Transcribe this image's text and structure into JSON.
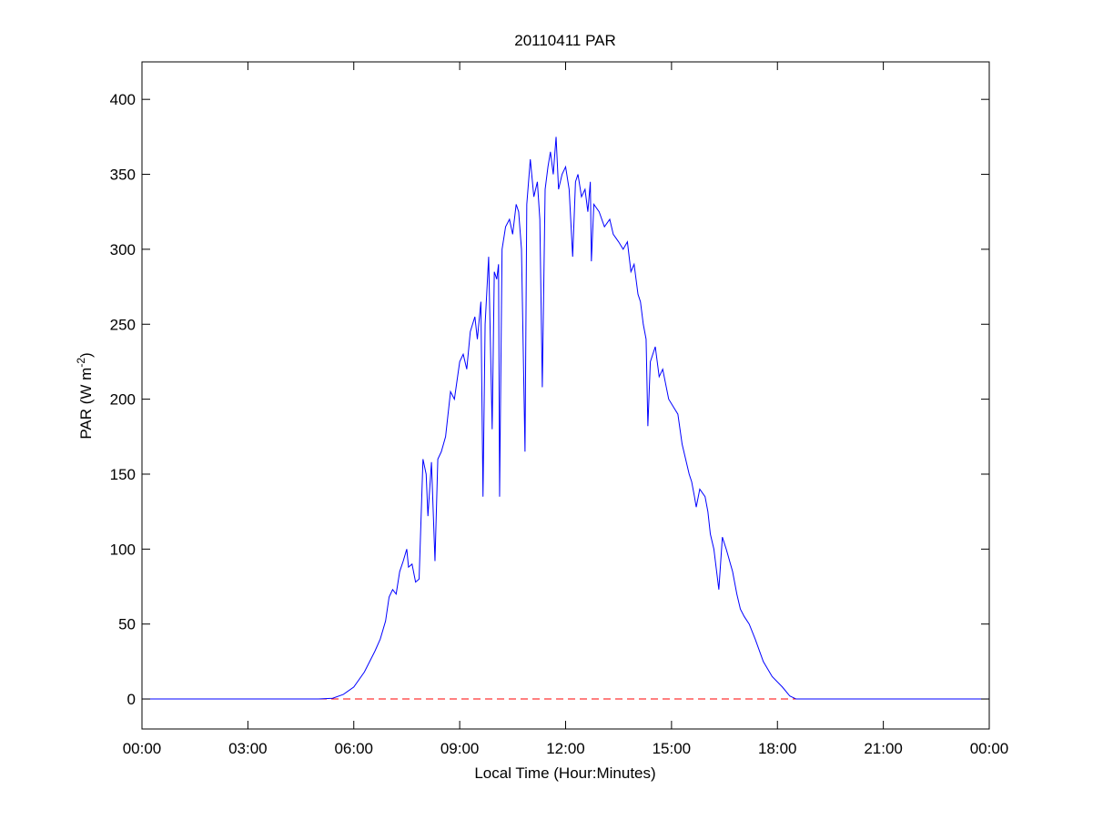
{
  "chart_data": {
    "type": "line",
    "title": "20110411 PAR",
    "xlabel": "Local Time (Hour:Minutes)",
    "ylabel": {
      "text": "PAR (W m",
      "sup": "-2",
      "end": ")"
    },
    "xlim": [
      0,
      24
    ],
    "xticks": [
      {
        "value": 0,
        "label": "00:00"
      },
      {
        "value": 3,
        "label": "03:00"
      },
      {
        "value": 6,
        "label": "06:00"
      },
      {
        "value": 9,
        "label": "09:00"
      },
      {
        "value": 12,
        "label": "12:00"
      },
      {
        "value": 15,
        "label": "15:00"
      },
      {
        "value": 18,
        "label": "18:00"
      },
      {
        "value": 21,
        "label": "21:00"
      },
      {
        "value": 24,
        "label": "00:00"
      }
    ],
    "ylim": [
      -20,
      425
    ],
    "yticks": [
      0,
      50,
      100,
      150,
      200,
      250,
      300,
      350,
      400
    ],
    "grid": false,
    "hline": {
      "value": 0,
      "color": "#ff0000",
      "style": "dashed"
    },
    "series": [
      {
        "color": "#0000ff",
        "x": [
          0,
          5.0,
          5.4,
          5.7,
          6.0,
          6.3,
          6.6,
          6.75,
          6.9,
          7.0,
          7.1,
          7.2,
          7.3,
          7.4,
          7.5,
          7.55,
          7.65,
          7.75,
          7.85,
          7.96,
          8.05,
          8.1,
          8.2,
          8.3,
          8.38,
          8.48,
          8.6,
          8.74,
          8.85,
          9.0,
          9.1,
          9.2,
          9.3,
          9.43,
          9.5,
          9.6,
          9.66,
          9.72,
          9.82,
          9.92,
          9.98,
          10.05,
          10.1,
          10.13,
          10.2,
          10.3,
          10.41,
          10.5,
          10.6,
          10.67,
          10.75,
          10.85,
          10.9,
          11.0,
          11.1,
          11.2,
          11.27,
          11.34,
          11.42,
          11.5,
          11.57,
          11.65,
          11.73,
          11.8,
          11.9,
          12.0,
          12.1,
          12.2,
          12.28,
          12.35,
          12.45,
          12.55,
          12.63,
          12.7,
          12.73,
          12.8,
          12.95,
          13.1,
          13.25,
          13.35,
          13.5,
          13.63,
          13.75,
          13.85,
          13.94,
          14.05,
          14.12,
          14.2,
          14.28,
          14.33,
          14.4,
          14.54,
          14.65,
          14.75,
          14.92,
          15.05,
          15.18,
          15.3,
          15.4,
          15.5,
          15.57,
          15.65,
          15.7,
          15.8,
          15.95,
          16.03,
          16.1,
          16.2,
          16.34,
          16.44,
          16.55,
          16.73,
          16.85,
          16.95,
          17.06,
          17.2,
          17.37,
          17.6,
          17.85,
          18.14,
          18.35,
          18.53,
          24
        ],
        "values": [
          0,
          0,
          0.5,
          3,
          8,
          18,
          32,
          40,
          52,
          68,
          73,
          70,
          85,
          92,
          100,
          88,
          90,
          78,
          80,
          160,
          150,
          122,
          158,
          92,
          160,
          165,
          175,
          205,
          200,
          225,
          230,
          220,
          245,
          255,
          240,
          265,
          135,
          250,
          295,
          180,
          285,
          280,
          290,
          135,
          300,
          315,
          320,
          310,
          330,
          325,
          300,
          165,
          330,
          360,
          335,
          345,
          320,
          208,
          340,
          355,
          365,
          350,
          375,
          340,
          350,
          355,
          340,
          295,
          345,
          350,
          335,
          340,
          325,
          345,
          292,
          330,
          325,
          315,
          320,
          310,
          305,
          300,
          305,
          285,
          290,
          270,
          265,
          250,
          240,
          182,
          225,
          235,
          215,
          220,
          200,
          195,
          190,
          170,
          160,
          150,
          145,
          135,
          128,
          140,
          135,
          125,
          110,
          100,
          73,
          108,
          100,
          85,
          70,
          60,
          55,
          50,
          40,
          25,
          15,
          8,
          2,
          0,
          0
        ]
      }
    ]
  }
}
